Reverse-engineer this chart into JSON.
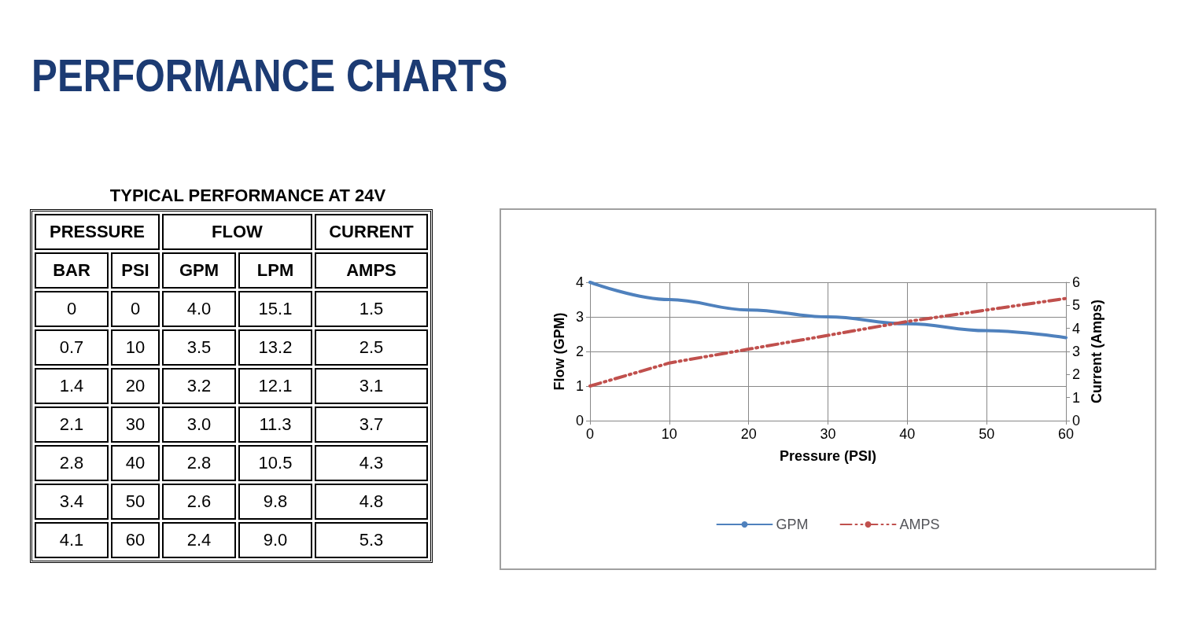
{
  "chart_data": [
    {
      "type": "other",
      "title": "PERFORMANCE CHARTS",
      "subtitle": "TYPICAL PERFORMANCE AT 24V",
      "annotations": [
        "PRESSURE",
        "FLOW",
        "CURRENT",
        "BAR",
        "PSI",
        "GPM",
        "LPM",
        "AMPS",
        "0",
        "0",
        "4.0",
        "15.1",
        "1.5",
        "0.7",
        "10",
        "3.5",
        "13.2",
        "2.5",
        "1.4",
        "20",
        "3.2",
        "12.1",
        "3.1",
        "2.1",
        "30",
        "3.0",
        "11.3",
        "3.7",
        "2.8",
        "40",
        "2.8",
        "10.5",
        "4.3",
        "3.4",
        "50",
        "2.6",
        "9.8",
        "4.8",
        "4.1",
        "60",
        "2.4",
        "9.0",
        "5.3"
      ]
    },
    {
      "type": "line",
      "xlabel": "Pressure (PSI)",
      "ylabel": "Flow (GPM)",
      "y2label": "Current (Amps)",
      "x": [
        0,
        10,
        20,
        30,
        40,
        50,
        60
      ],
      "series": [
        {
          "name": "GPM",
          "color": "#4f81bd",
          "values": [
            4.0,
            3.5,
            3.2,
            3.0,
            2.8,
            2.6,
            2.4
          ],
          "line_style": "solid"
        },
        {
          "name": "AMPS",
          "color": "#c0504d",
          "values": [
            1.5,
            2.5,
            3.1,
            3.7,
            4.3,
            4.8,
            5.3
          ],
          "axis": "y2",
          "line_style": "dashed"
        }
      ],
      "xlim": [
        0,
        60
      ],
      "xticks": [
        0,
        10,
        20,
        30,
        40,
        50,
        60
      ],
      "ylim": [
        0,
        4
      ],
      "yticks": [
        0,
        1,
        2,
        3,
        4
      ],
      "y2lim": [
        0,
        6
      ],
      "y2ticks": [
        0,
        1,
        2,
        3,
        4,
        5,
        6
      ],
      "grid": true,
      "legend": "bottom",
      "marker": "none"
    }
  ]
}
